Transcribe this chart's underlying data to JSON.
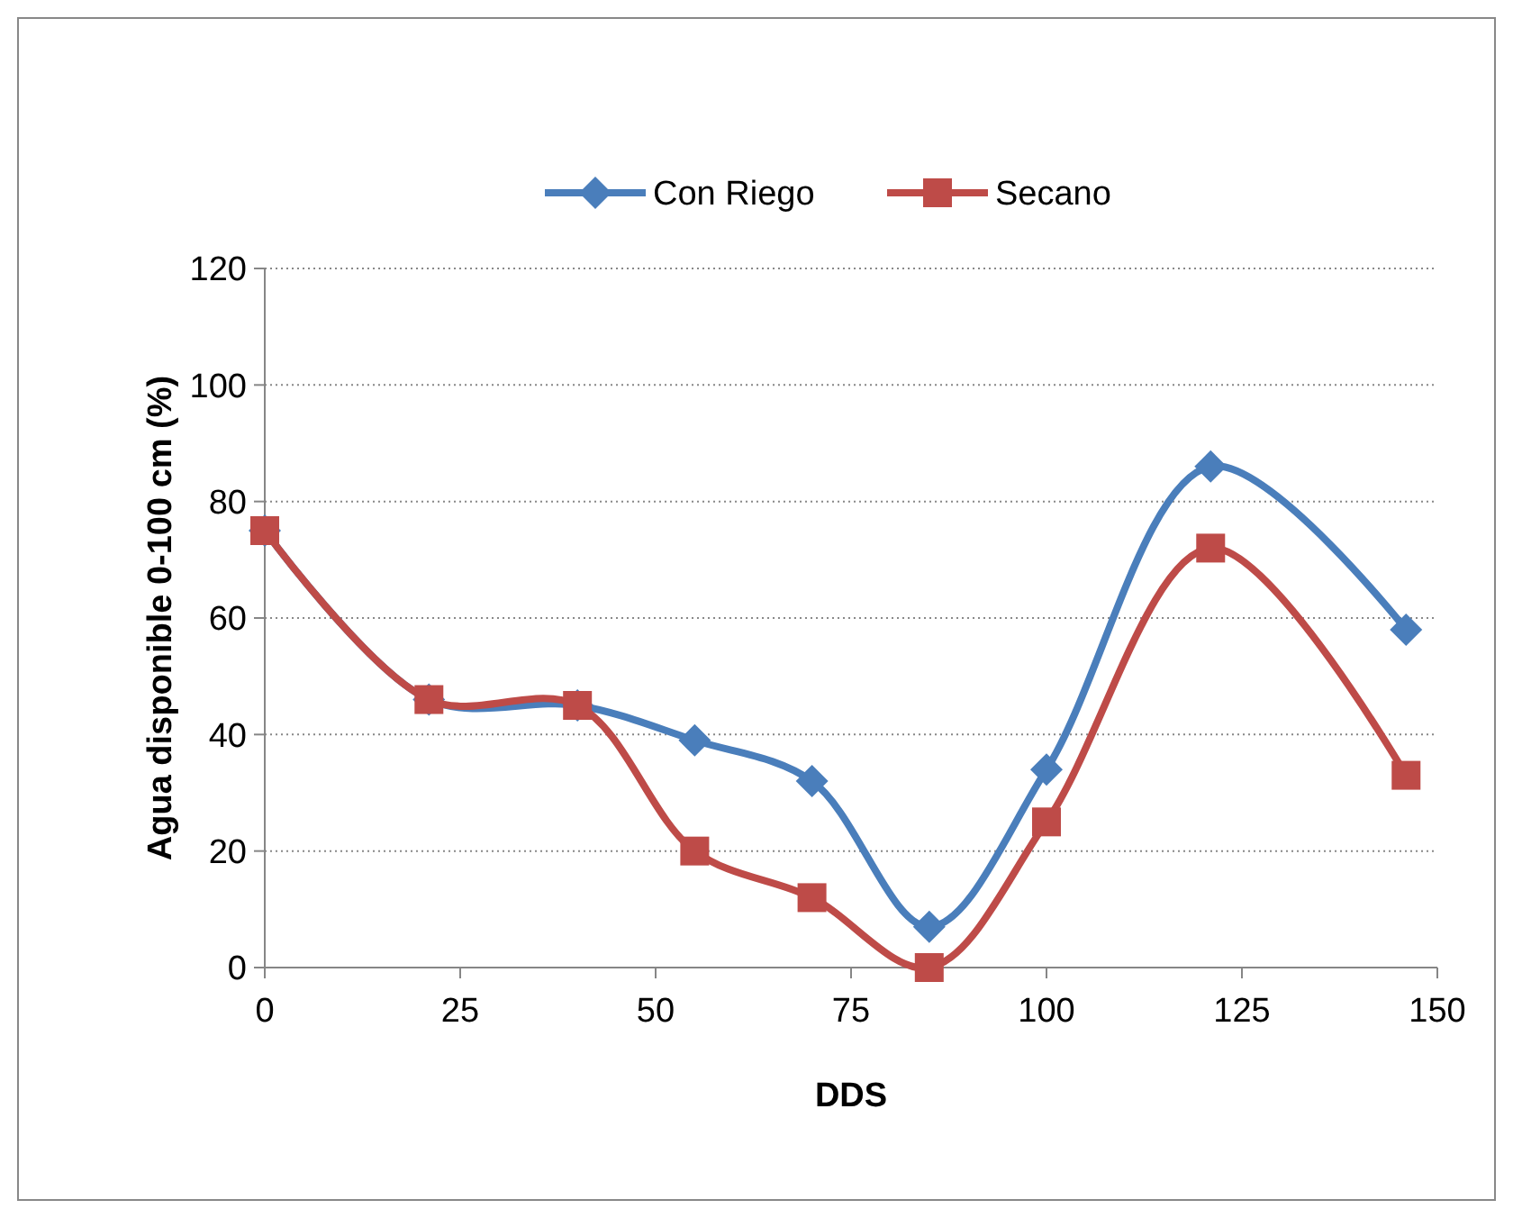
{
  "chart_data": {
    "type": "line",
    "xlabel": "DDS",
    "ylabel": "Agua disponible 0-100 cm (%)",
    "x": [
      0,
      21,
      40,
      55,
      70,
      85,
      100,
      121,
      146
    ],
    "series": [
      {
        "name": "Con Riego",
        "color": "#4a7ebb",
        "marker": "diamond",
        "values": [
          75,
          46,
          45,
          39,
          32,
          7,
          34,
          86,
          58
        ]
      },
      {
        "name": "Secano",
        "color": "#be4b48",
        "marker": "square",
        "values": [
          75,
          46,
          45,
          20,
          12,
          0,
          25,
          72,
          33
        ]
      }
    ],
    "xlim": [
      0,
      150
    ],
    "xticks": [
      0,
      25,
      50,
      75,
      100,
      125,
      150
    ],
    "ylim": [
      0,
      120
    ],
    "yticks": [
      0,
      20,
      40,
      60,
      80,
      100,
      120
    ],
    "grid": "y",
    "legend": "top"
  }
}
